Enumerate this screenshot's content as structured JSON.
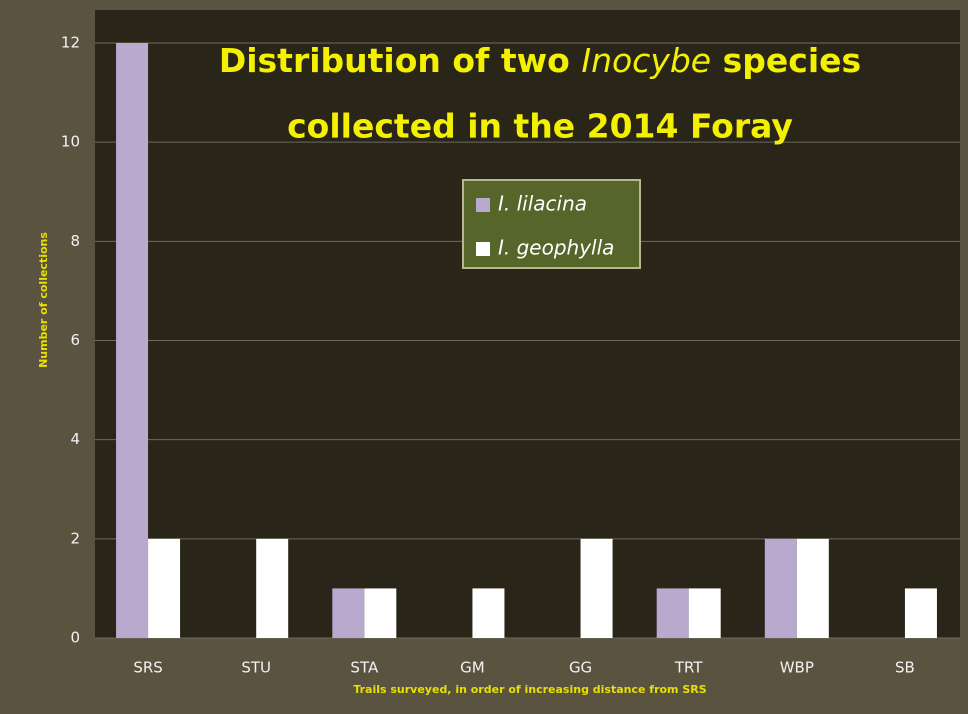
{
  "chart_data": {
    "type": "bar",
    "title_parts": [
      "Distribution of two",
      "Inocybe",
      "species",
      "collected in the 2014 Foray"
    ],
    "x_label": "Trails surveyed, in order of increasing distance from SRS",
    "y_label": "Number of collections",
    "categories": [
      "SRS",
      "STU",
      "STA",
      "GM",
      "GG",
      "TRT",
      "WBP",
      "SB"
    ],
    "series": [
      {
        "name": "I. lilacina",
        "color": "#b9a9cf",
        "values": [
          12,
          0,
          1,
          0,
          0,
          1,
          2,
          0
        ]
      },
      {
        "name": "I. geophylla",
        "color": "#ffffff",
        "values": [
          2,
          2,
          1,
          1,
          2,
          1,
          2,
          1
        ]
      }
    ],
    "ylim": [
      0,
      12
    ],
    "yticks": [
      0,
      2,
      4,
      6,
      8,
      10,
      12
    ],
    "grid": true
  }
}
